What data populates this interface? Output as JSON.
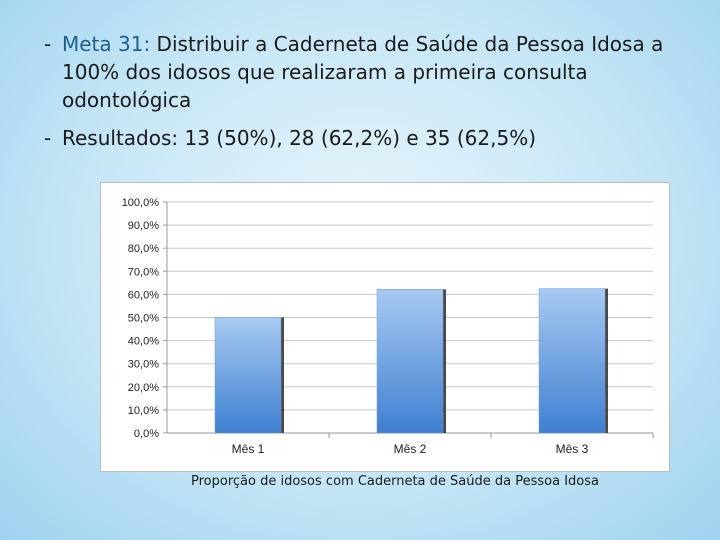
{
  "bullets": [
    {
      "label": "Meta 31:",
      "text": " Distribuir a Caderneta de Saúde da Pessoa Idosa a 100% dos idosos que realizaram a primeira consulta odontológica"
    },
    {
      "label": "",
      "text": "Resultados: 13 (50%), 28 (62,2%) e 35 (62,5%)"
    }
  ],
  "chart_data": {
    "type": "bar",
    "categories": [
      "Mês 1",
      "Mês 2",
      "Mês 3"
    ],
    "values": [
      50.0,
      62.2,
      62.5
    ],
    "ylim": [
      0,
      100
    ],
    "yticks": [
      0,
      10,
      20,
      30,
      40,
      50,
      60,
      70,
      80,
      90,
      100
    ],
    "ytick_labels": [
      "0,0%",
      "10,0%",
      "20,0%",
      "30,0%",
      "40,0%",
      "50,0%",
      "60,0%",
      "70,0%",
      "80,0%",
      "90,0%",
      "100,0%"
    ],
    "grid": true,
    "bar_color": "#4f8fdc",
    "caption": "Proporção de idosos com Caderneta de Saúde da Pessoa Idosa"
  }
}
